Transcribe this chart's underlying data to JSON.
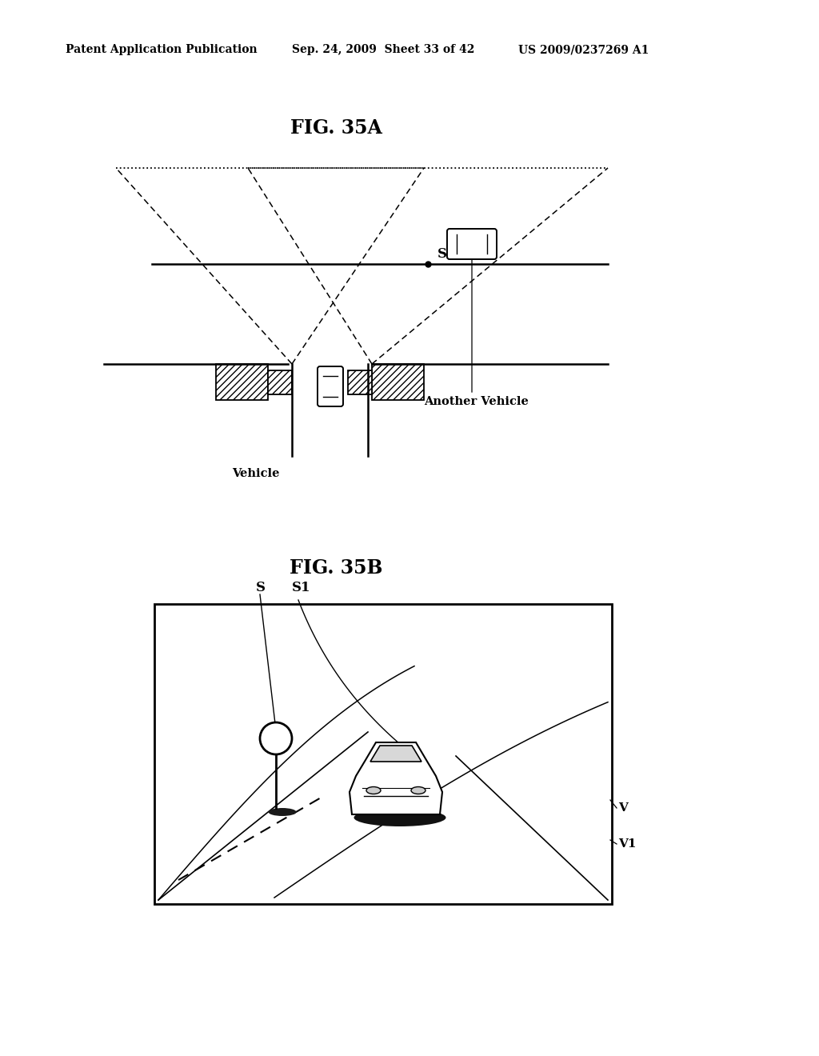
{
  "bg_color": "#ffffff",
  "header_text": "Patent Application Publication",
  "header_date": "Sep. 24, 2009  Sheet 33 of 42",
  "header_patent": "US 2009/0237269 A1",
  "fig35a_title": "FIG. 35A",
  "fig35b_title": "FIG. 35B",
  "label_vehicle": "Vehicle",
  "label_another_vehicle": "Another Vehicle",
  "label_S": "S",
  "label_S1": "S1",
  "label_V": "V",
  "label_V1": "V1"
}
